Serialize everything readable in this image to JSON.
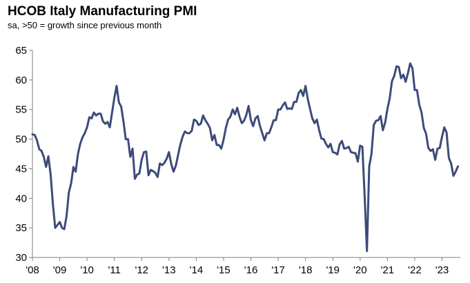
{
  "chart_data": {
    "type": "line",
    "title": "HCOB Italy Manufacturing PMI",
    "subtitle": "sa, >50 = growth since previous month",
    "xlabel": "",
    "ylabel": "",
    "ylim": [
      30,
      65
    ],
    "xlim": [
      2008,
      2023.67
    ],
    "grid": false,
    "line_color": "#3d4a7a",
    "yticks": [
      30,
      35,
      40,
      45,
      50,
      55,
      60,
      65
    ],
    "xticks": [
      {
        "value": 2008,
        "label": "'08"
      },
      {
        "value": 2009,
        "label": "'09"
      },
      {
        "value": 2010,
        "label": "'10"
      },
      {
        "value": 2011,
        "label": "'11"
      },
      {
        "value": 2012,
        "label": "'12"
      },
      {
        "value": 2013,
        "label": "'13"
      },
      {
        "value": 2014,
        "label": "'14"
      },
      {
        "value": 2015,
        "label": "'15"
      },
      {
        "value": 2016,
        "label": "'16"
      },
      {
        "value": 2017,
        "label": "'17"
      },
      {
        "value": 2018,
        "label": "'18"
      },
      {
        "value": 2019,
        "label": "'19"
      },
      {
        "value": 2020,
        "label": "'20"
      },
      {
        "value": 2021,
        "label": "'21"
      },
      {
        "value": 2022,
        "label": "'22"
      },
      {
        "value": 2023,
        "label": "'23"
      }
    ],
    "series": [
      {
        "name": "HCOB Italy Manufacturing PMI",
        "start": 2008.0,
        "step": 0.08333,
        "values": [
          50.8,
          50.7,
          49.8,
          48.3,
          48.0,
          47.0,
          45.3,
          47.1,
          44.0,
          39.0,
          35.0,
          35.5,
          36.0,
          35.0,
          34.8,
          37.0,
          41.0,
          42.5,
          45.3,
          44.5,
          47.5,
          49.2,
          50.3,
          51.0,
          52.0,
          53.7,
          53.5,
          54.5,
          54.0,
          54.3,
          54.3,
          53.0,
          52.6,
          52.9,
          52.0,
          54.5,
          57.0,
          59.0,
          56.2,
          55.5,
          53.0,
          50.0,
          50.0,
          47.0,
          48.4,
          43.3,
          44.0,
          44.2,
          46.5,
          47.8,
          47.9,
          43.9,
          44.8,
          44.6,
          44.3,
          43.6,
          45.9,
          45.6,
          46.0,
          46.7,
          47.8,
          45.8,
          44.5,
          45.5,
          47.3,
          49.1,
          50.4,
          51.3,
          51.0,
          51.0,
          51.4,
          53.3,
          53.1,
          52.4,
          52.6,
          54.0,
          53.2,
          52.6,
          51.9,
          49.8,
          50.7,
          49.0,
          49.0,
          48.4,
          49.9,
          51.9,
          53.3,
          53.8,
          55.0,
          54.2,
          55.3,
          53.8,
          52.7,
          53.1,
          54.1,
          55.6,
          53.2,
          52.2,
          53.5,
          53.9,
          52.2,
          51.0,
          49.8,
          51.0,
          51.0,
          52.0,
          53.2,
          53.2,
          55.0,
          55.0,
          55.7,
          56.2,
          55.1,
          55.2,
          55.1,
          56.3,
          56.3,
          57.8,
          58.3,
          57.3,
          59.0,
          56.8,
          55.1,
          53.5,
          52.7,
          53.3,
          51.5,
          50.1,
          50.0,
          49.2,
          48.6,
          49.2,
          47.8,
          47.7,
          47.4,
          49.1,
          49.7,
          48.4,
          48.5,
          48.7,
          47.8,
          47.7,
          47.6,
          46.2,
          48.9,
          48.7,
          40.3,
          31.1,
          45.4,
          47.5,
          52.4,
          53.1,
          53.2,
          53.9,
          51.5,
          52.8,
          55.1,
          56.9,
          59.8,
          60.7,
          62.3,
          62.2,
          60.3,
          60.9,
          59.7,
          61.1,
          62.8,
          62.0,
          58.3,
          58.3,
          55.8,
          54.5,
          51.9,
          50.9,
          48.5,
          48.0,
          48.3,
          46.5,
          48.4,
          48.5,
          50.4,
          52.0,
          51.1,
          46.8,
          45.9,
          43.8,
          44.5,
          45.4
        ]
      }
    ]
  }
}
